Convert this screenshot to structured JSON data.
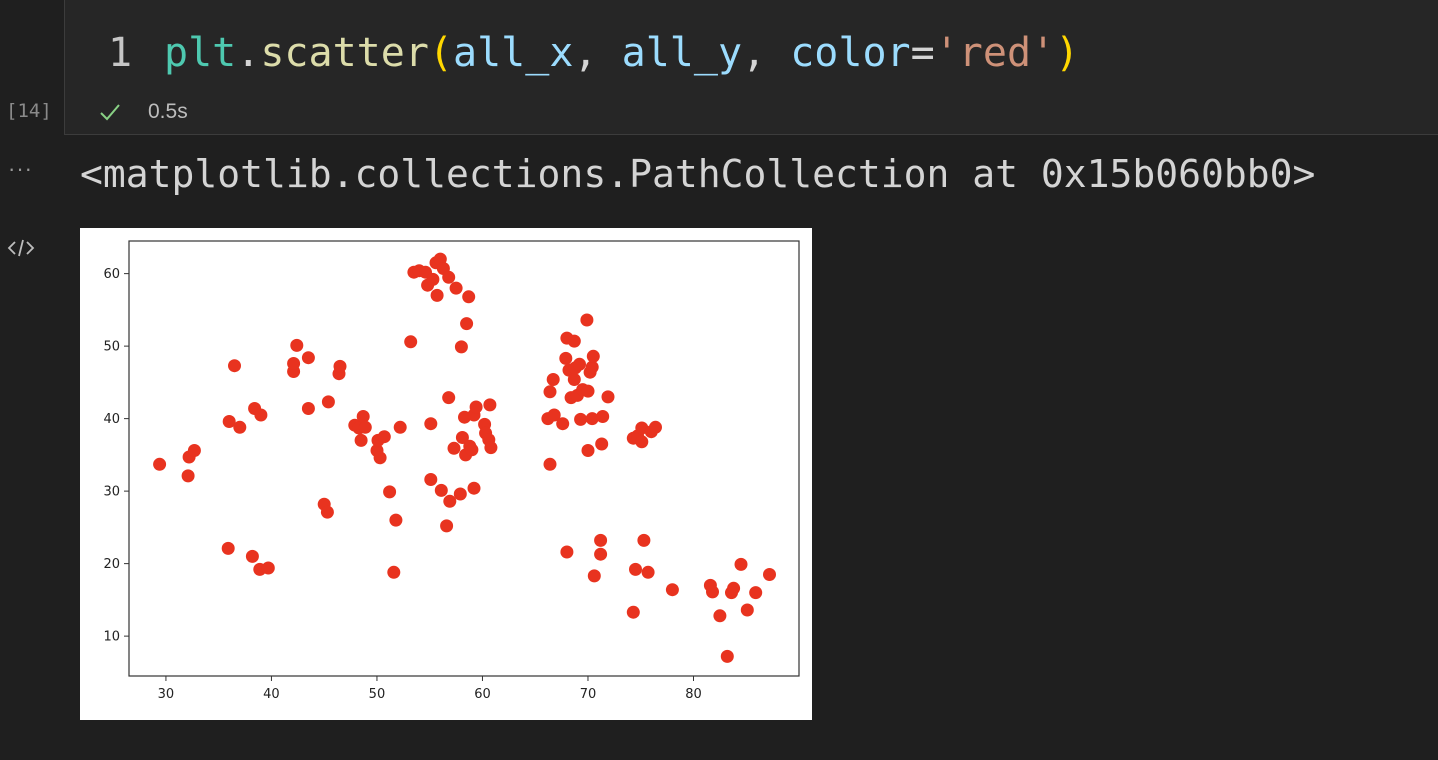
{
  "cell": {
    "execution_count": "[14]",
    "line_number": "1",
    "code_tokens": [
      {
        "text": "plt",
        "cls": "tok-mod"
      },
      {
        "text": ".",
        "cls": "tok-punc"
      },
      {
        "text": "scatter",
        "cls": "tok-fn"
      },
      {
        "text": "(",
        "cls": "tok-paren"
      },
      {
        "text": "all_x",
        "cls": "tok-var"
      },
      {
        "text": ", ",
        "cls": "tok-punc"
      },
      {
        "text": "all_y",
        "cls": "tok-var"
      },
      {
        "text": ", ",
        "cls": "tok-punc"
      },
      {
        "text": "color",
        "cls": "tok-var"
      },
      {
        "text": "=",
        "cls": "tok-punc"
      },
      {
        "text": "'red'",
        "cls": "tok-str"
      },
      {
        "text": ")",
        "cls": "tok-paren"
      }
    ],
    "status_icon": "check-icon",
    "exec_time": "0.5s"
  },
  "output": {
    "more_icon": "ellipsis-icon",
    "text": "<matplotlib.collections.PathCollection at 0x15b060bb0>",
    "mime_icon": "code-icon"
  },
  "colors": {
    "point": "#e8331f",
    "success": "#89d185"
  },
  "chart_data": {
    "type": "scatter",
    "title": "",
    "xlabel": "",
    "ylabel": "",
    "xlim": [
      26.5,
      90
    ],
    "ylim": [
      4.5,
      64.5
    ],
    "xticks": [
      30,
      40,
      50,
      60,
      70,
      80
    ],
    "yticks": [
      10,
      20,
      30,
      40,
      50,
      60
    ],
    "grid": false,
    "series": [
      {
        "color": "#e8331f",
        "points": [
          [
            29.4,
            33.7
          ],
          [
            32.1,
            32.1
          ],
          [
            32.2,
            34.7
          ],
          [
            32.7,
            35.6
          ],
          [
            35.9,
            22.1
          ],
          [
            36.0,
            39.6
          ],
          [
            36.5,
            47.3
          ],
          [
            37.0,
            38.8
          ],
          [
            38.2,
            21.0
          ],
          [
            38.4,
            41.4
          ],
          [
            38.9,
            19.2
          ],
          [
            39.0,
            40.5
          ],
          [
            39.7,
            19.4
          ],
          [
            42.1,
            46.5
          ],
          [
            42.1,
            47.6
          ],
          [
            42.4,
            50.1
          ],
          [
            43.5,
            48.4
          ],
          [
            43.5,
            41.4
          ],
          [
            45.0,
            28.2
          ],
          [
            45.3,
            27.1
          ],
          [
            45.4,
            42.3
          ],
          [
            46.4,
            46.2
          ],
          [
            46.5,
            47.2
          ],
          [
            47.9,
            39.1
          ],
          [
            48.3,
            38.7
          ],
          [
            48.5,
            37.0
          ],
          [
            48.7,
            40.3
          ],
          [
            48.9,
            38.8
          ],
          [
            50.0,
            35.6
          ],
          [
            50.1,
            37.0
          ],
          [
            50.3,
            34.6
          ],
          [
            50.7,
            37.5
          ],
          [
            51.2,
            29.9
          ],
          [
            51.6,
            18.8
          ],
          [
            51.8,
            26.0
          ],
          [
            52.2,
            38.8
          ],
          [
            53.2,
            50.6
          ],
          [
            53.5,
            60.2
          ],
          [
            54.0,
            60.4
          ],
          [
            54.6,
            60.2
          ],
          [
            54.8,
            58.4
          ],
          [
            55.1,
            39.3
          ],
          [
            55.1,
            31.6
          ],
          [
            55.3,
            59.2
          ],
          [
            55.6,
            61.5
          ],
          [
            55.7,
            57.0
          ],
          [
            56.0,
            62.0
          ],
          [
            56.1,
            30.1
          ],
          [
            56.3,
            60.7
          ],
          [
            56.6,
            25.2
          ],
          [
            56.8,
            59.5
          ],
          [
            56.8,
            42.9
          ],
          [
            56.9,
            28.6
          ],
          [
            57.3,
            35.9
          ],
          [
            57.5,
            58.0
          ],
          [
            57.9,
            29.6
          ],
          [
            58.0,
            49.9
          ],
          [
            58.1,
            37.4
          ],
          [
            58.3,
            40.2
          ],
          [
            58.4,
            35.0
          ],
          [
            58.5,
            53.1
          ],
          [
            58.7,
            56.8
          ],
          [
            58.8,
            36.2
          ],
          [
            59.0,
            35.7
          ],
          [
            59.2,
            40.5
          ],
          [
            59.2,
            30.4
          ],
          [
            59.4,
            41.6
          ],
          [
            60.2,
            39.2
          ],
          [
            60.3,
            38.0
          ],
          [
            60.6,
            37.1
          ],
          [
            60.7,
            41.9
          ],
          [
            60.8,
            36.0
          ],
          [
            66.2,
            40.0
          ],
          [
            66.4,
            33.7
          ],
          [
            66.4,
            43.7
          ],
          [
            66.7,
            45.4
          ],
          [
            66.8,
            40.5
          ],
          [
            67.6,
            39.3
          ],
          [
            67.9,
            48.3
          ],
          [
            68.0,
            51.1
          ],
          [
            68.0,
            21.6
          ],
          [
            68.2,
            46.7
          ],
          [
            68.4,
            42.9
          ],
          [
            68.7,
            50.7
          ],
          [
            68.7,
            45.4
          ],
          [
            68.8,
            47.0
          ],
          [
            69.0,
            43.2
          ],
          [
            69.2,
            47.5
          ],
          [
            69.3,
            39.9
          ],
          [
            69.5,
            44.0
          ],
          [
            69.9,
            53.6
          ],
          [
            70.0,
            35.6
          ],
          [
            70.0,
            43.8
          ],
          [
            70.2,
            46.4
          ],
          [
            70.4,
            40.0
          ],
          [
            70.4,
            47.1
          ],
          [
            70.5,
            48.6
          ],
          [
            70.6,
            18.3
          ],
          [
            71.2,
            23.2
          ],
          [
            71.2,
            21.3
          ],
          [
            71.3,
            36.5
          ],
          [
            71.4,
            40.3
          ],
          [
            71.9,
            43.0
          ],
          [
            74.3,
            13.3
          ],
          [
            74.3,
            37.3
          ],
          [
            74.5,
            19.2
          ],
          [
            74.7,
            37.6
          ],
          [
            75.1,
            36.8
          ],
          [
            75.1,
            38.7
          ],
          [
            75.3,
            23.2
          ],
          [
            75.7,
            18.8
          ],
          [
            76.0,
            38.2
          ],
          [
            76.4,
            38.8
          ],
          [
            78.0,
            16.4
          ],
          [
            81.6,
            17.0
          ],
          [
            81.8,
            16.1
          ],
          [
            82.5,
            12.8
          ],
          [
            83.2,
            7.2
          ],
          [
            83.6,
            16.0
          ],
          [
            83.8,
            16.6
          ],
          [
            84.5,
            19.9
          ],
          [
            85.1,
            13.6
          ],
          [
            85.9,
            16.0
          ],
          [
            87.2,
            18.5
          ]
        ]
      }
    ]
  }
}
